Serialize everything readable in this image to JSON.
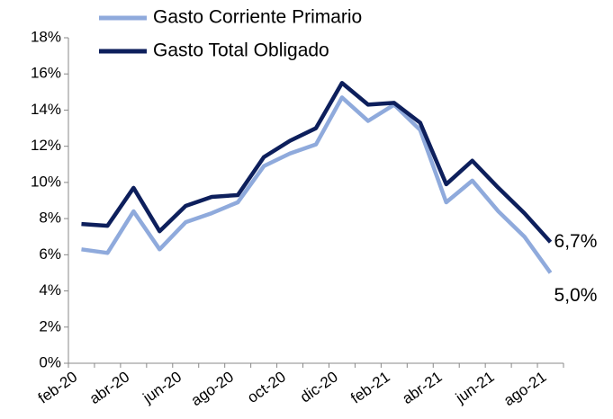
{
  "chart_data": {
    "type": "line",
    "categories": [
      "feb-20",
      null,
      "abr-20",
      null,
      "jun-20",
      null,
      "ago-20",
      null,
      "oct-20",
      null,
      "dic-20",
      null,
      "feb-21",
      null,
      "abr-21",
      null,
      "jun-21",
      null,
      "ago-21"
    ],
    "series": [
      {
        "name": "Gasto Corriente Primario",
        "color": "#8faadc",
        "values": [
          6.3,
          6.1,
          8.4,
          6.3,
          7.8,
          8.3,
          8.9,
          10.9,
          11.6,
          12.1,
          14.7,
          13.4,
          14.3,
          12.9,
          8.9,
          10.1,
          8.4,
          7.0,
          5.0
        ],
        "value_labels": [
          null,
          null,
          null,
          null,
          null,
          null,
          null,
          null,
          null,
          null,
          null,
          null,
          null,
          null,
          null,
          null,
          null,
          null,
          "5,0%"
        ]
      },
      {
        "name": "Gasto Total Obligado",
        "color": "#0d1f5c",
        "values": [
          7.7,
          7.6,
          9.7,
          7.3,
          8.7,
          9.2,
          9.3,
          11.4,
          12.3,
          13.0,
          15.5,
          14.3,
          14.4,
          13.3,
          9.9,
          11.2,
          9.7,
          8.3,
          6.7
        ],
        "value_labels": [
          null,
          null,
          null,
          null,
          null,
          null,
          null,
          null,
          null,
          null,
          null,
          null,
          null,
          null,
          null,
          null,
          null,
          null,
          "6,7%"
        ]
      }
    ],
    "ylim": [
      0,
      18
    ],
    "yticks": [
      {
        "value": 0,
        "label": "0%"
      },
      {
        "value": 2,
        "label": "2%"
      },
      {
        "value": 4,
        "label": "4%"
      },
      {
        "value": 6,
        "label": "6%"
      },
      {
        "value": 8,
        "label": "8%"
      },
      {
        "value": 10,
        "label": "10%"
      },
      {
        "value": 12,
        "label": "12%"
      },
      {
        "value": 14,
        "label": "14%"
      },
      {
        "value": 16,
        "label": "16%"
      },
      {
        "value": 18,
        "label": "18%"
      }
    ],
    "grid": false,
    "legend": "top"
  }
}
